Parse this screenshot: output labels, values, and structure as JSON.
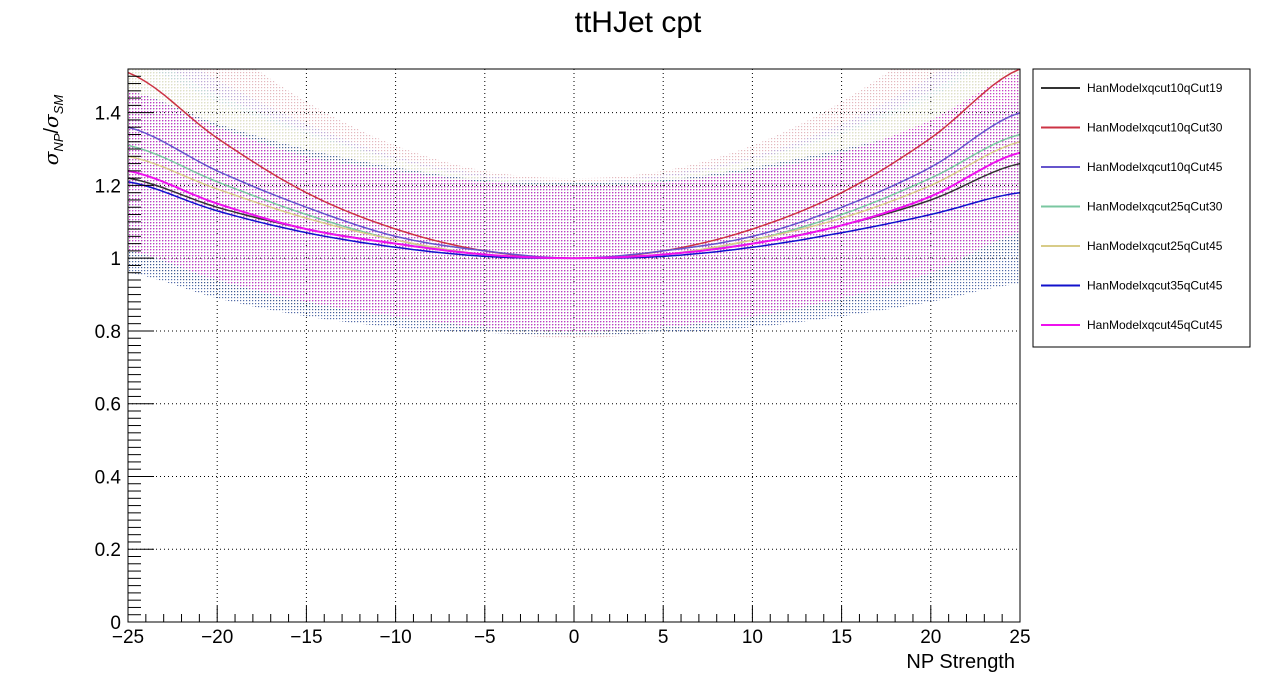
{
  "chart_data": {
    "type": "line",
    "title": "ttHJet cpt",
    "xlabel": "NP Strength",
    "ylabel": "σ_NP/σ_SM",
    "xlim": [
      -25,
      25
    ],
    "ylim": [
      0,
      1.52
    ],
    "xticks": [
      -25,
      -20,
      -15,
      -10,
      -5,
      0,
      5,
      10,
      15,
      20,
      25
    ],
    "xtick_labels": [
      "−25",
      "−20",
      "−15",
      "−10",
      "−5",
      "0",
      "5",
      "10",
      "15",
      "20",
      "25"
    ],
    "yticks": [
      0,
      0.2,
      0.4,
      0.6,
      0.8,
      1,
      1.2,
      1.4
    ],
    "ytick_labels": [
      "0",
      "0.2",
      "0.4",
      "0.6",
      "0.8",
      "1",
      "1.2",
      "1.4"
    ],
    "grid": true,
    "legend_position": "right",
    "x": [
      -25,
      -20,
      -15,
      -10,
      -5,
      0,
      5,
      10,
      15,
      20,
      25
    ],
    "series": [
      {
        "name": "HanModelxqcut10qCut19",
        "color": "#333333",
        "band_color": "#9a9a9a",
        "values": [
          1.22,
          1.14,
          1.08,
          1.04,
          1.01,
          1.0,
          1.01,
          1.04,
          1.09,
          1.16,
          1.26
        ],
        "band_halfwidth": [
          0.24,
          0.23,
          0.22,
          0.21,
          0.21,
          0.21,
          0.21,
          0.21,
          0.22,
          0.23,
          0.24
        ]
      },
      {
        "name": "HanModelxqcut10qCut30",
        "color": "#cc3344",
        "band_color": "#d9a0a8",
        "values": [
          1.51,
          1.33,
          1.18,
          1.08,
          1.02,
          1.0,
          1.02,
          1.08,
          1.18,
          1.33,
          1.52
        ],
        "band_halfwidth": [
          0.3,
          0.27,
          0.25,
          0.23,
          0.22,
          0.22,
          0.22,
          0.23,
          0.25,
          0.27,
          0.3
        ]
      },
      {
        "name": "HanModelxqcut10qCut45",
        "color": "#6655cc",
        "band_color": "#b0a8e0",
        "values": [
          1.36,
          1.24,
          1.14,
          1.06,
          1.02,
          1.0,
          1.02,
          1.06,
          1.14,
          1.25,
          1.4
        ],
        "band_halfwidth": [
          0.27,
          0.25,
          0.23,
          0.22,
          0.21,
          0.21,
          0.21,
          0.22,
          0.23,
          0.25,
          0.27
        ]
      },
      {
        "name": "HanModelxqcut25qCut30",
        "color": "#7ac7a0",
        "band_color": "#bfe8d4",
        "values": [
          1.31,
          1.21,
          1.12,
          1.05,
          1.01,
          1.0,
          1.01,
          1.05,
          1.12,
          1.22,
          1.34
        ],
        "band_halfwidth": [
          0.26,
          0.24,
          0.23,
          0.22,
          0.21,
          0.21,
          0.21,
          0.22,
          0.23,
          0.24,
          0.26
        ]
      },
      {
        "name": "HanModelxqcut25qCut45",
        "color": "#d8cc88",
        "band_color": "#ece6c0",
        "values": [
          1.28,
          1.19,
          1.11,
          1.05,
          1.01,
          1.0,
          1.01,
          1.05,
          1.11,
          1.2,
          1.32
        ],
        "band_halfwidth": [
          0.26,
          0.24,
          0.23,
          0.22,
          0.21,
          0.21,
          0.21,
          0.22,
          0.23,
          0.24,
          0.26
        ]
      },
      {
        "name": "HanModelxqcut35qCut45",
        "color": "#1111cc",
        "band_color": "#1a3a8a",
        "values": [
          1.21,
          1.13,
          1.07,
          1.03,
          1.005,
          1.0,
          1.005,
          1.03,
          1.07,
          1.12,
          1.18
        ],
        "band_halfwidth": [
          0.25,
          0.24,
          0.23,
          0.22,
          0.21,
          0.21,
          0.21,
          0.22,
          0.23,
          0.24,
          0.25
        ]
      },
      {
        "name": "HanModelxqcut45qCut45",
        "color": "#ee11ee",
        "band_color": "#cc33cc",
        "values": [
          1.24,
          1.15,
          1.08,
          1.04,
          1.01,
          1.0,
          1.01,
          1.04,
          1.09,
          1.17,
          1.29
        ],
        "band_halfwidth": [
          0.22,
          0.21,
          0.2,
          0.2,
          0.2,
          0.2,
          0.2,
          0.2,
          0.2,
          0.21,
          0.22
        ]
      }
    ]
  }
}
